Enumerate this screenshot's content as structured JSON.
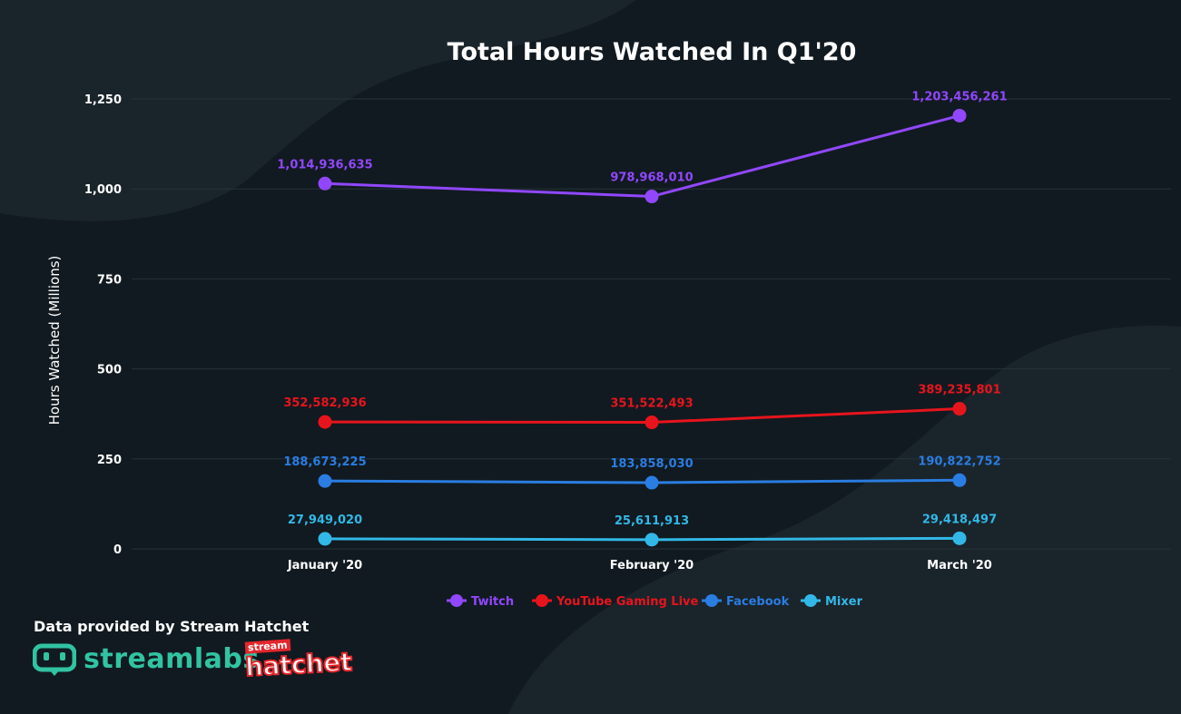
{
  "chart_data": {
    "type": "line",
    "title": "Total Hours Watched In Q1'20",
    "ylabel": "Hours Watched (Millions)",
    "xlabel": "",
    "categories": [
      "January '20",
      "February '20",
      "March '20"
    ],
    "ylim": [
      0,
      1250
    ],
    "yticks": [
      0,
      250,
      500,
      750,
      1000,
      1250
    ],
    "ytick_labels": [
      "0",
      "250",
      "500",
      "750",
      "1,000",
      "1,250"
    ],
    "grid": true,
    "legend_position": "bottom-center",
    "series": [
      {
        "name": "Twitch",
        "color": "#9147ff",
        "values": [
          1014.936635,
          978.96801,
          1203.456261
        ],
        "labels": [
          "1,014,936,635",
          "978,968,010",
          "1,203,456,261"
        ]
      },
      {
        "name": "YouTube Gaming Live",
        "color": "#e8141c",
        "values": [
          352.582936,
          351.522493,
          389.235801
        ],
        "labels": [
          "352,582,936",
          "351,522,493",
          "389,235,801"
        ]
      },
      {
        "name": "Facebook",
        "color": "#2a7de1",
        "values": [
          188.673225,
          183.85803,
          190.822752
        ],
        "labels": [
          "188,673,225",
          "183,858,030",
          "190,822,752"
        ]
      },
      {
        "name": "Mixer",
        "color": "#32b8e6",
        "values": [
          27.94902,
          25.611913,
          29.418497
        ],
        "labels": [
          "27,949,020",
          "25,611,913",
          "29,418,497"
        ]
      }
    ]
  },
  "footer": {
    "credit": "Data provided by Stream Hatchet",
    "streamlabs_logo_text": "streamlabs",
    "hatchet_logo_small": "stream",
    "hatchet_logo_big": "hatchet"
  },
  "colors": {
    "background": "#111a20",
    "background_shape": "#1a242b",
    "grid": "#26323a",
    "streamlabs": "#31c3a2",
    "hatchet": "#e5262b"
  }
}
